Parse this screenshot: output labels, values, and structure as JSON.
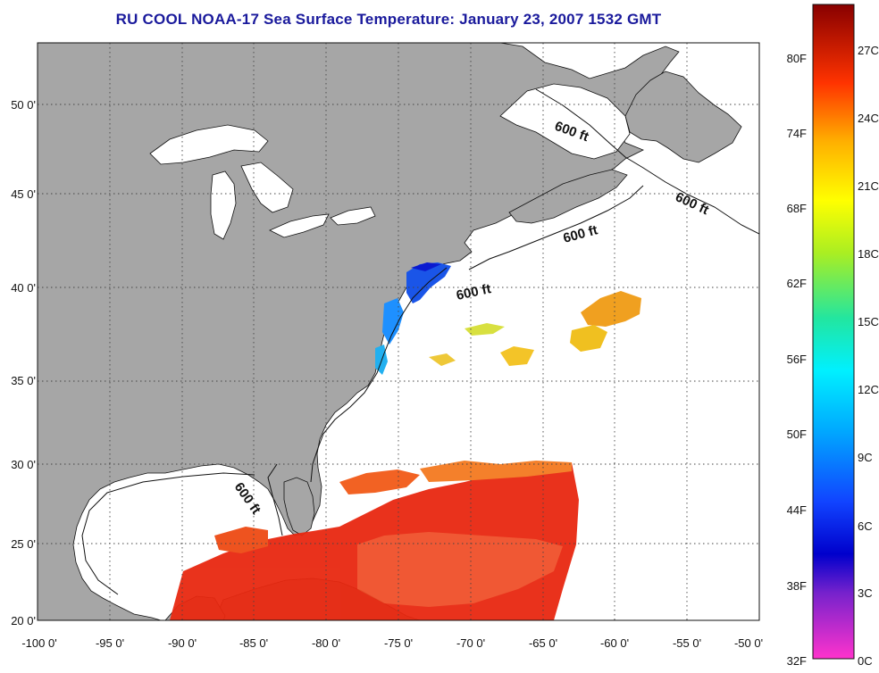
{
  "title": "RU COOL  NOAA-17  Sea Surface Temperature:  January 23, 2007 1532 GMT",
  "map": {
    "lon_range": [
      -100,
      -50
    ],
    "lat_range": [
      20,
      52.5
    ],
    "lon_ticks": [
      "-100 0'",
      "-95 0'",
      "-90 0'",
      "-85 0'",
      "-80 0'",
      "-75 0'",
      "-70 0'",
      "-65 0'",
      "-60 0'",
      "-55 0'",
      "-50 0'"
    ],
    "lat_ticks": [
      "20 0'",
      "25 0'",
      "30 0'",
      "35 0'",
      "40 0'",
      "45 0'",
      "50 0'"
    ],
    "isobath_labels": [
      "600 ft",
      "600 ft",
      "600 ft",
      "600 ft",
      "600 ft"
    ],
    "colors": {
      "land": "#a6a6a6",
      "lakes": "#ffffff",
      "no_data": "#ffffff",
      "gridline": "#444444"
    }
  },
  "colorbar": {
    "fahrenheit_labels": [
      "80F",
      "74F",
      "68F",
      "62F",
      "56F",
      "50F",
      "44F",
      "38F",
      "32F"
    ],
    "celsius_labels": [
      "27C",
      "24C",
      "21C",
      "18C",
      "15C",
      "12C",
      "9C",
      "6C",
      "3C",
      "0C"
    ],
    "range_c": [
      0,
      28
    ]
  }
}
